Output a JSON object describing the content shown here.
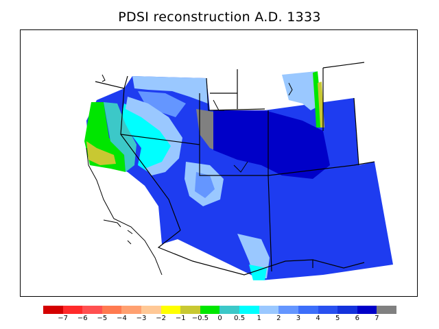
{
  "title": "PDSI reconstruction A.D. 1333",
  "legend": {
    "colors": [
      "#d40000",
      "#ff2a2a",
      "#ff5050",
      "#ff7a50",
      "#ffa070",
      "#ffc896",
      "#ffff00",
      "#c8c832",
      "#00e600",
      "#3cc8c8",
      "#00ffff",
      "#9ac8ff",
      "#6496ff",
      "#3c6efa",
      "#2850f0",
      "#1432dc",
      "#0000c8",
      "#808080"
    ],
    "tick_labels": [
      "−7",
      "−6",
      "−5",
      "−4",
      "−3",
      "−2",
      "−1",
      "−0.5",
      "0",
      "0.5",
      "1",
      "2",
      "3",
      "4",
      "5",
      "6",
      "7"
    ]
  },
  "colors": {
    "frame": "#000000",
    "missing": "#808080"
  }
}
